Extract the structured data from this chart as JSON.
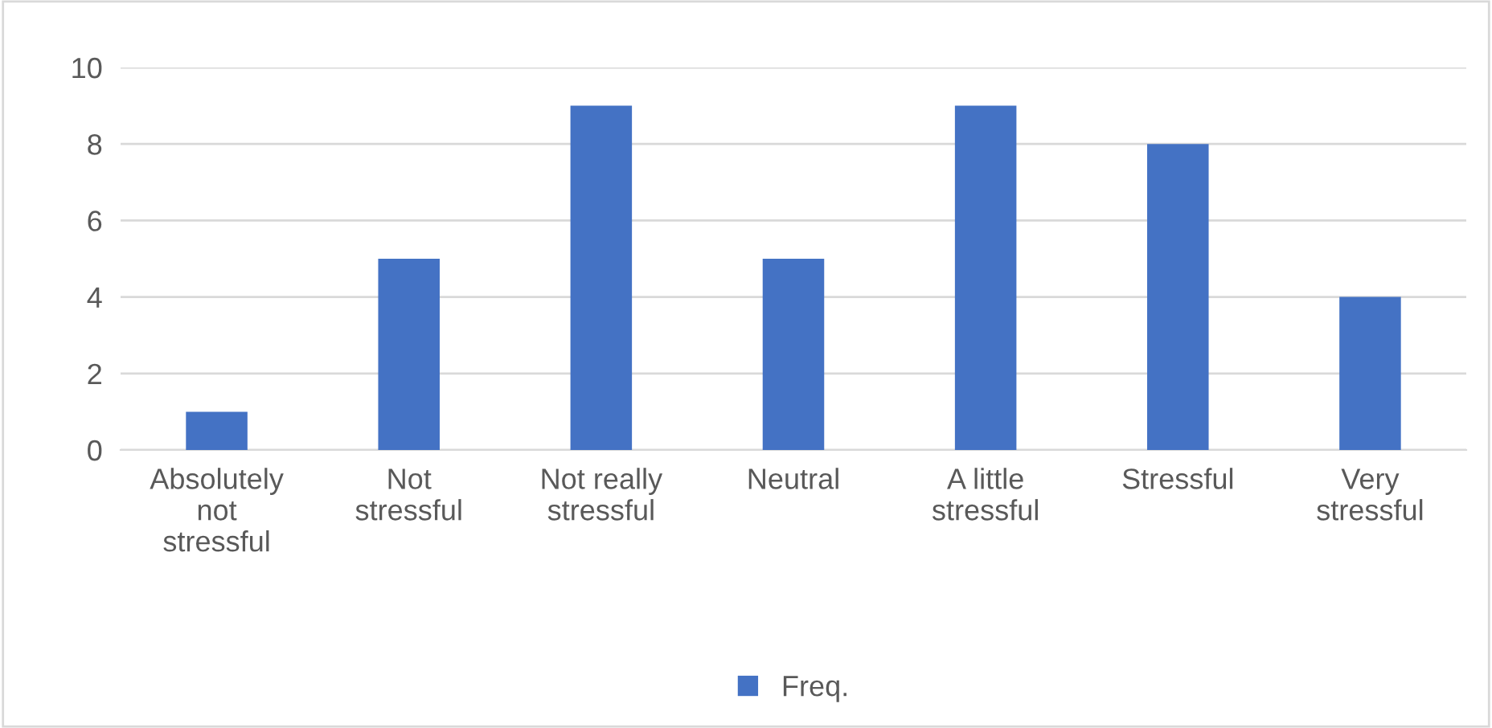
{
  "chart_data": {
    "type": "bar",
    "categories": [
      "Absolutely\nnot\nstressful",
      "Not\nstressful",
      "Not really\nstressful",
      "Neutral",
      "A little\nstressful",
      "Stressful",
      "Very\nstressful"
    ],
    "series": [
      {
        "name": "Freq.",
        "color": "#4472c4",
        "values": [
          1,
          5,
          9,
          5,
          9,
          8,
          4
        ]
      }
    ],
    "ylim": [
      0,
      10
    ],
    "yticks": [
      0,
      2,
      4,
      6,
      8,
      10
    ],
    "grid": "y",
    "legend": "bottom"
  }
}
